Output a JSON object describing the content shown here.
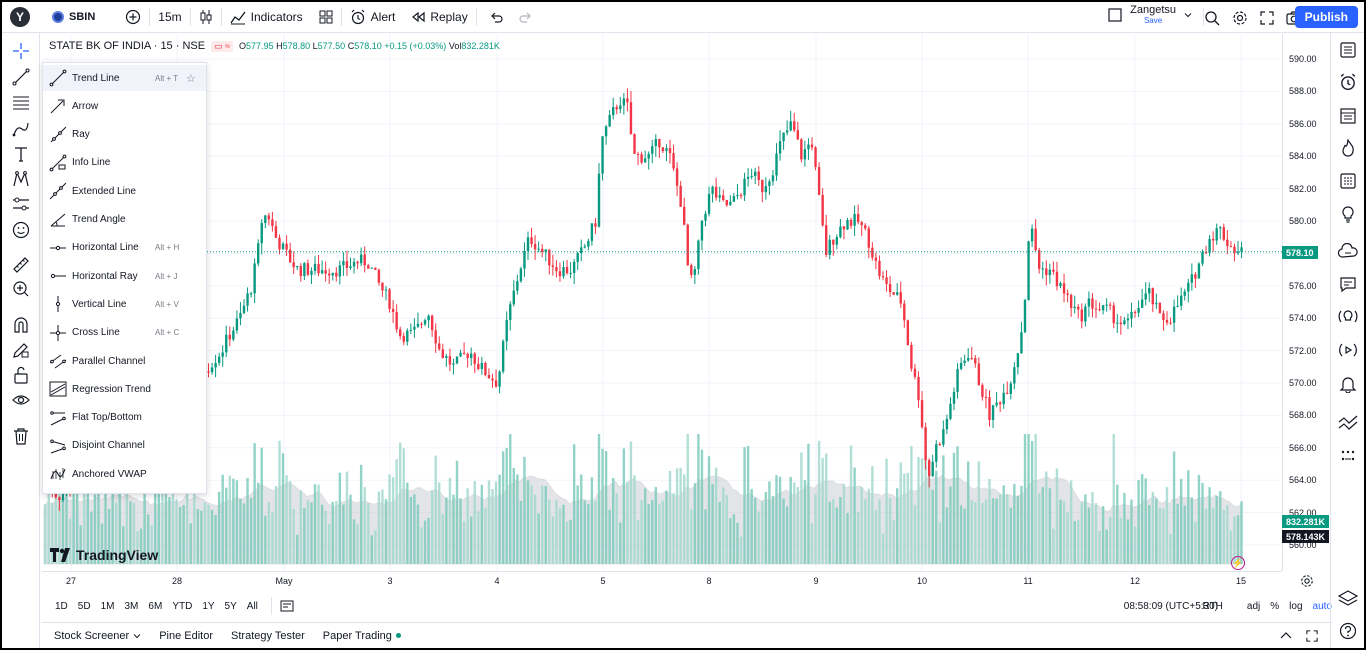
{
  "topbar": {
    "avatar_letter": "Y",
    "symbol": "SBIN",
    "interval": "15m",
    "indicators_label": "Indicators",
    "alert_label": "Alert",
    "replay_label": "Replay",
    "user_name": "Zangetsu",
    "save_label": "Save",
    "publish_label": "Publish"
  },
  "legend": {
    "title": "STATE BK OF INDIA · 15 · NSE",
    "open_label": "O",
    "open": "577.95",
    "high_label": "H",
    "high": "578.80",
    "low_label": "L",
    "low": "577.50",
    "close_label": "C",
    "close": "578.10",
    "change": "+0.15 (+0.03%)",
    "vol_label": "Vol",
    "vol": "832.281K"
  },
  "draw_menu": {
    "items": [
      {
        "label": "Trend Line",
        "shortcut": "Alt + T",
        "icon": "trend-line-icon"
      },
      {
        "label": "Arrow",
        "shortcut": "",
        "icon": "arrow-icon"
      },
      {
        "label": "Ray",
        "shortcut": "",
        "icon": "ray-icon"
      },
      {
        "label": "Info Line",
        "shortcut": "",
        "icon": "info-line-icon"
      },
      {
        "label": "Extended Line",
        "shortcut": "",
        "icon": "extended-line-icon"
      },
      {
        "label": "Trend Angle",
        "shortcut": "",
        "icon": "trend-angle-icon"
      },
      {
        "label": "Horizontal Line",
        "shortcut": "Alt + H",
        "icon": "horizontal-line-icon"
      },
      {
        "label": "Horizontal Ray",
        "shortcut": "Alt + J",
        "icon": "horizontal-ray-icon"
      },
      {
        "label": "Vertical Line",
        "shortcut": "Alt + V",
        "icon": "vertical-line-icon"
      },
      {
        "label": "Cross Line",
        "shortcut": "Alt + C",
        "icon": "cross-line-icon"
      },
      {
        "label": "Parallel Channel",
        "shortcut": "",
        "icon": "parallel-channel-icon"
      },
      {
        "label": "Regression Trend",
        "shortcut": "",
        "icon": "regression-trend-icon"
      },
      {
        "label": "Flat Top/Bottom",
        "shortcut": "",
        "icon": "flat-top-bottom-icon"
      },
      {
        "label": "Disjoint Channel",
        "shortcut": "",
        "icon": "disjoint-channel-icon"
      },
      {
        "label": "Anchored VWAP",
        "shortcut": "",
        "icon": "anchored-vwap-icon"
      }
    ]
  },
  "price_axis": {
    "labels": [
      "590.00",
      "588.00",
      "586.00",
      "584.00",
      "582.00",
      "580.00",
      "578.00",
      "576.00",
      "574.00",
      "572.00",
      "570.00",
      "568.00",
      "566.00",
      "564.00",
      "562.00",
      "560.00"
    ],
    "current_price": "578.10",
    "vol_tag": "832.281K",
    "vol_ma_tag": "578.143K"
  },
  "time_axis": {
    "labels": [
      "27",
      "28",
      "May",
      "3",
      "4",
      "5",
      "8",
      "9",
      "10",
      "11",
      "12",
      "15"
    ]
  },
  "brand": "TradingView",
  "bottom": {
    "ranges": [
      "1D",
      "5D",
      "1M",
      "3M",
      "6M",
      "YTD",
      "1Y",
      "5Y",
      "All"
    ],
    "time": "08:58:09 (UTC+5:30)",
    "session": "RTH",
    "adj": "adj",
    "percent": "%",
    "log": "log",
    "auto": "auto",
    "panels": [
      "Stock Screener",
      "Pine Editor",
      "Strategy Tester",
      "Paper Trading"
    ]
  },
  "colors": {
    "up": "#089981",
    "down": "#f23645",
    "volume_up": "#7fcbbd",
    "volume_down": "#7fcbbd",
    "accent": "#2962ff"
  },
  "chart_data": {
    "type": "candlestick",
    "interval": "15",
    "price_range": [
      559,
      591
    ],
    "current_price": 578.1,
    "path": [
      [
        0,
        565
      ],
      [
        18,
        563
      ],
      [
        45,
        564
      ],
      [
        62,
        566
      ],
      [
        80,
        568.5
      ],
      [
        100,
        569
      ],
      [
        118,
        571
      ],
      [
        130,
        571
      ],
      [
        150,
        570.5
      ],
      [
        168,
        571
      ],
      [
        182,
        572
      ],
      [
        190,
        573
      ],
      [
        200,
        574
      ],
      [
        206,
        575
      ],
      [
        212,
        576
      ],
      [
        218,
        578
      ],
      [
        222,
        580
      ],
      [
        228,
        580.5
      ],
      [
        236,
        579
      ],
      [
        246,
        578
      ],
      [
        258,
        577
      ],
      [
        275,
        577
      ],
      [
        300,
        577
      ],
      [
        318,
        577.5
      ],
      [
        328,
        577.5
      ],
      [
        340,
        576
      ],
      [
        350,
        575
      ],
      [
        360,
        573
      ],
      [
        372,
        573
      ],
      [
        380,
        573.5
      ],
      [
        388,
        574.5
      ],
      [
        400,
        572
      ],
      [
        414,
        571
      ],
      [
        430,
        572
      ],
      [
        440,
        571
      ],
      [
        458,
        570
      ],
      [
        468,
        574
      ],
      [
        480,
        577
      ],
      [
        490,
        579
      ],
      [
        504,
        578
      ],
      [
        518,
        577
      ],
      [
        532,
        577
      ],
      [
        546,
        578.5
      ],
      [
        556,
        580
      ],
      [
        562,
        585
      ],
      [
        572,
        586.5
      ],
      [
        580,
        587.5
      ],
      [
        588,
        587
      ],
      [
        594,
        584
      ],
      [
        610,
        584
      ],
      [
        620,
        585
      ],
      [
        630,
        584
      ],
      [
        642,
        581
      ],
      [
        650,
        576
      ],
      [
        656,
        577
      ],
      [
        662,
        580
      ],
      [
        672,
        582
      ],
      [
        682,
        581
      ],
      [
        692,
        581
      ],
      [
        702,
        582
      ],
      [
        712,
        583
      ],
      [
        722,
        582
      ],
      [
        732,
        583
      ],
      [
        742,
        585
      ],
      [
        752,
        586
      ],
      [
        762,
        584
      ],
      [
        772,
        585
      ],
      [
        778,
        582
      ],
      [
        786,
        578
      ],
      [
        794,
        579
      ],
      [
        806,
        580
      ],
      [
        818,
        580
      ],
      [
        828,
        579
      ],
      [
        838,
        577
      ],
      [
        846,
        576
      ],
      [
        854,
        575.5
      ],
      [
        862,
        575
      ],
      [
        872,
        571
      ],
      [
        880,
        569
      ],
      [
        888,
        564
      ],
      [
        896,
        566
      ],
      [
        904,
        567
      ],
      [
        912,
        569
      ],
      [
        920,
        571
      ],
      [
        930,
        572
      ],
      [
        940,
        570
      ],
      [
        950,
        568
      ],
      [
        960,
        569
      ],
      [
        970,
        570
      ],
      [
        978,
        572
      ],
      [
        984,
        574
      ],
      [
        990,
        580
      ],
      [
        1000,
        577
      ],
      [
        1010,
        577
      ],
      [
        1020,
        576
      ],
      [
        1030,
        575
      ],
      [
        1040,
        574
      ],
      [
        1050,
        575
      ],
      [
        1060,
        574.5
      ],
      [
        1068,
        574.5
      ],
      [
        1076,
        574
      ],
      [
        1084,
        573.5
      ],
      [
        1092,
        574
      ],
      [
        1100,
        575
      ],
      [
        1110,
        575.5
      ],
      [
        1120,
        574
      ],
      [
        1130,
        574
      ],
      [
        1140,
        575
      ],
      [
        1150,
        576
      ],
      [
        1160,
        577.5
      ],
      [
        1170,
        579
      ],
      [
        1180,
        579.5
      ],
      [
        1190,
        578.5
      ],
      [
        1198,
        578.1
      ]
    ],
    "volume_scale": [
      0,
      3.5
    ],
    "volume_unit": "M"
  }
}
